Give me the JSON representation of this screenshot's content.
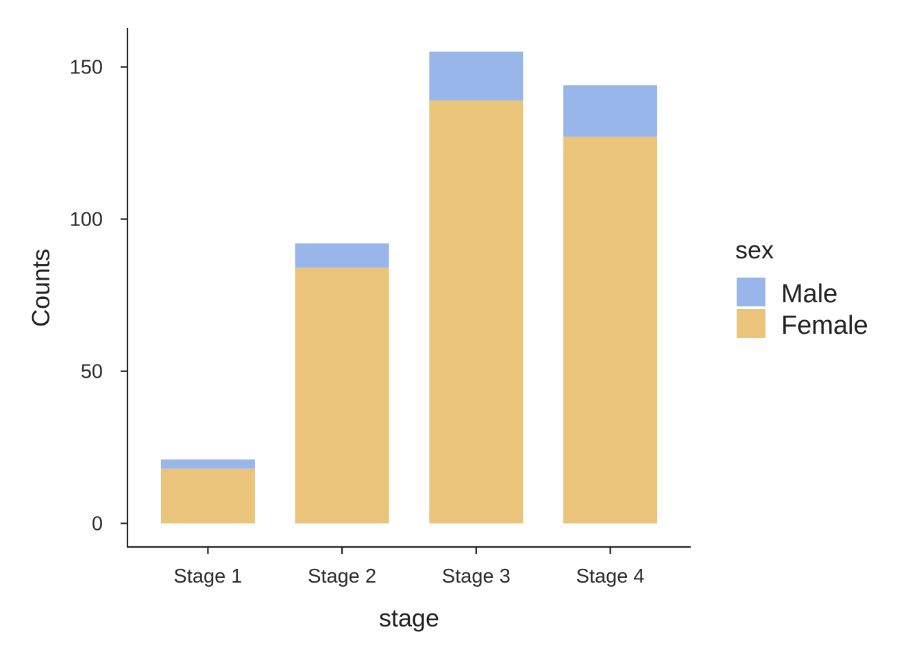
{
  "chart_data": {
    "type": "bar",
    "stacked": true,
    "categories": [
      "Stage 1",
      "Stage 2",
      "Stage 3",
      "Stage 4"
    ],
    "series": [
      {
        "name": "Female",
        "values": [
          18,
          84,
          139,
          127
        ],
        "color": "#EAC47B"
      },
      {
        "name": "Male",
        "values": [
          3,
          8,
          16,
          17
        ],
        "color": "#99B6EB"
      }
    ],
    "xlabel": "stage",
    "ylabel": "Counts",
    "ylim": [
      -7.75,
      162.75
    ],
    "yticks": [
      0,
      50,
      100,
      150
    ],
    "legend": {
      "title": "sex",
      "position": "right",
      "entries": [
        "Male",
        "Female"
      ]
    },
    "grid": false
  }
}
